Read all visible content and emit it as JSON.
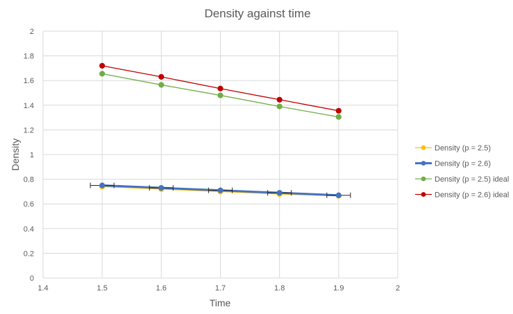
{
  "chart_data": {
    "type": "scatter",
    "title": "Density against time",
    "xlabel": "Time",
    "ylabel": "Density",
    "xlim": [
      1.4,
      2.0
    ],
    "ylim": [
      0,
      2.0
    ],
    "x_ticks": [
      "1.4",
      "1.5",
      "1.6",
      "1.7",
      "1.8",
      "1.9",
      "2"
    ],
    "y_ticks": [
      "0",
      "0.2",
      "0.4",
      "0.6",
      "0.8",
      "1",
      "1.2",
      "1.4",
      "1.6",
      "1.8",
      "2"
    ],
    "grid": true,
    "legend_position": "right",
    "series": [
      {
        "name": "Density (p = 2.5)",
        "color": "#ffc000",
        "line_width": "thin",
        "x": [
          1.5,
          1.6,
          1.7,
          1.8,
          1.9
        ],
        "y": [
          0.74,
          0.72,
          0.7,
          0.68,
          0.665
        ],
        "x_error": 0
      },
      {
        "name": "Density (p = 2.6)",
        "color": "#4472c4",
        "line_width": "thick",
        "x": [
          1.5,
          1.6,
          1.7,
          1.8,
          1.9
        ],
        "y": [
          0.75,
          0.73,
          0.71,
          0.69,
          0.67
        ],
        "x_error": 0.02
      },
      {
        "name": "Density (p = 2.5) ideal",
        "color": "#70ad47",
        "line_width": "thin",
        "x": [
          1.5,
          1.6,
          1.7,
          1.8,
          1.9
        ],
        "y": [
          1.655,
          1.565,
          1.48,
          1.39,
          1.305
        ],
        "x_error": 0
      },
      {
        "name": "Density (p = 2.6) ideal",
        "color": "#c00000",
        "line_width": "thin",
        "x": [
          1.5,
          1.6,
          1.7,
          1.8,
          1.9
        ],
        "y": [
          1.72,
          1.63,
          1.535,
          1.445,
          1.355
        ],
        "x_error": 0
      }
    ]
  }
}
